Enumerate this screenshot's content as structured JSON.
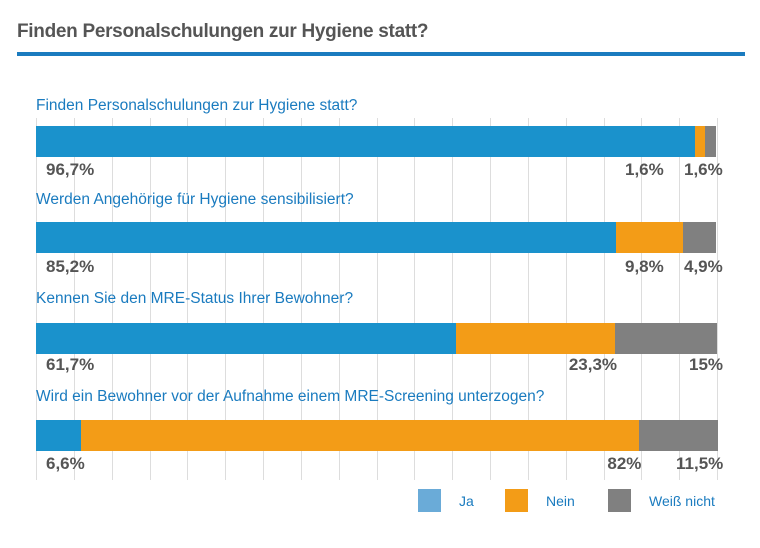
{
  "title": "Finden Personalschulungen zur Hygiene statt?",
  "chart_data": {
    "type": "bar",
    "orientation": "horizontal-stacked",
    "xlim": [
      0,
      100
    ],
    "grid": true,
    "legend_placement": "bottom-right",
    "categories": [
      "Finden Personalschulungen zur Hygiene statt?",
      "Werden Angehörige für Hygiene sensibilisiert?",
      "Kennen Sie den MRE-Status Ihrer Bewohner?",
      "Wird ein Bewohner vor der Aufnahme einem MRE-Screening unterzogen?"
    ],
    "series": [
      {
        "name": "Ja",
        "color": "#1a92cc",
        "legend_color": "#6aabd8",
        "values": [
          96.7,
          85.2,
          61.7,
          6.6
        ],
        "labels": [
          "96,7%",
          "85,2%",
          "61,7%",
          "6,6%"
        ]
      },
      {
        "name": "Nein",
        "color": "#f39c17",
        "legend_color": "#f39c17",
        "values": [
          1.6,
          9.8,
          23.3,
          82
        ],
        "labels": [
          "1,6%",
          "9,8%",
          "23,3%",
          "82%"
        ]
      },
      {
        "name": "Weiß nicht",
        "color": "#808080",
        "legend_color": "#808080",
        "values": [
          1.6,
          4.9,
          15,
          11.5
        ],
        "labels": [
          "1,6%",
          "4,9%",
          "15%",
          "11,5%"
        ]
      }
    ]
  }
}
